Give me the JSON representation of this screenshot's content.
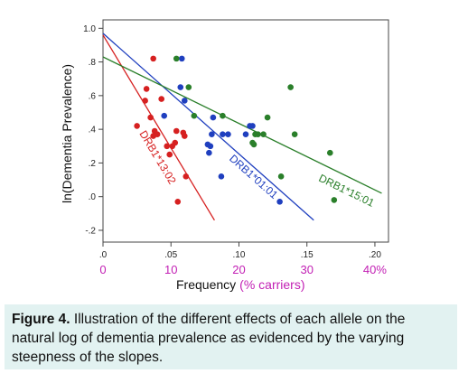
{
  "chart_data": {
    "type": "scatter",
    "title": "",
    "xlabel": "Frequency",
    "xlabel_suffix": "(% carriers)",
    "ylabel": "ln(Dementia Prevalence)",
    "xlim": [
      0,
      0.21
    ],
    "ylim": [
      -0.27,
      1.05
    ],
    "x_ticks": [
      ".0",
      ".05",
      ".10",
      ".15",
      ".20"
    ],
    "x_tick_values": [
      0,
      0.05,
      0.1,
      0.15,
      0.2
    ],
    "x_pct_ticks": [
      "0",
      "10",
      "20",
      "30",
      "40%"
    ],
    "y_ticks": [
      "1.0",
      ".8",
      ".6",
      ".4",
      ".2",
      ".0",
      "-.2"
    ],
    "y_tick_values": [
      1.0,
      0.8,
      0.6,
      0.4,
      0.2,
      0.0,
      -0.2
    ],
    "series": [
      {
        "name": "DRB1*13:02",
        "color": "#d62020",
        "fit": [
          [
            0.0,
            0.96
          ],
          [
            0.082,
            -0.14
          ]
        ],
        "points": [
          [
            0.037,
            0.82
          ],
          [
            0.032,
            0.64
          ],
          [
            0.043,
            0.58
          ],
          [
            0.031,
            0.57
          ],
          [
            0.035,
            0.47
          ],
          [
            0.038,
            0.39
          ],
          [
            0.04,
            0.37
          ],
          [
            0.037,
            0.36
          ],
          [
            0.025,
            0.42
          ],
          [
            0.054,
            0.39
          ],
          [
            0.059,
            0.38
          ],
          [
            0.047,
            0.3
          ],
          [
            0.051,
            0.3
          ],
          [
            0.053,
            0.32
          ],
          [
            0.049,
            0.25
          ],
          [
            0.06,
            0.36
          ],
          [
            0.061,
            0.12
          ],
          [
            0.055,
            -0.03
          ]
        ]
      },
      {
        "name": "DRB1*01:01",
        "color": "#1f3fbf",
        "fit": [
          [
            0.0,
            0.97
          ],
          [
            0.155,
            -0.14
          ]
        ],
        "points": [
          [
            0.058,
            0.82
          ],
          [
            0.057,
            0.65
          ],
          [
            0.06,
            0.57
          ],
          [
            0.045,
            0.48
          ],
          [
            0.081,
            0.47
          ],
          [
            0.088,
            0.37
          ],
          [
            0.08,
            0.37
          ],
          [
            0.077,
            0.31
          ],
          [
            0.079,
            0.3
          ],
          [
            0.078,
            0.26
          ],
          [
            0.092,
            0.37
          ],
          [
            0.105,
            0.37
          ],
          [
            0.108,
            0.42
          ],
          [
            0.11,
            0.42
          ],
          [
            0.087,
            0.12
          ],
          [
            0.13,
            -0.03
          ]
        ]
      },
      {
        "name": "DRB1*15:01",
        "color": "#2a7f2a",
        "fit": [
          [
            0.0,
            0.83
          ],
          [
            0.205,
            0.02
          ]
        ],
        "points": [
          [
            0.054,
            0.82
          ],
          [
            0.063,
            0.65
          ],
          [
            0.067,
            0.48
          ],
          [
            0.088,
            0.48
          ],
          [
            0.112,
            0.37
          ],
          [
            0.11,
            0.32
          ],
          [
            0.111,
            0.31
          ],
          [
            0.114,
            0.37
          ],
          [
            0.118,
            0.37
          ],
          [
            0.121,
            0.47
          ],
          [
            0.138,
            0.65
          ],
          [
            0.141,
            0.37
          ],
          [
            0.131,
            0.12
          ],
          [
            0.167,
            0.26
          ],
          [
            0.17,
            -0.02
          ]
        ]
      }
    ],
    "line_labels": [
      "DRB1*13:02",
      "DRB1*01:01",
      "DRB1*15:01"
    ]
  },
  "caption": {
    "label": "Figure 4.",
    "text": "Illustration of the different effects of each allele on the natural log of dementia prevalence as evidenced by the varying steepness of the slopes."
  }
}
